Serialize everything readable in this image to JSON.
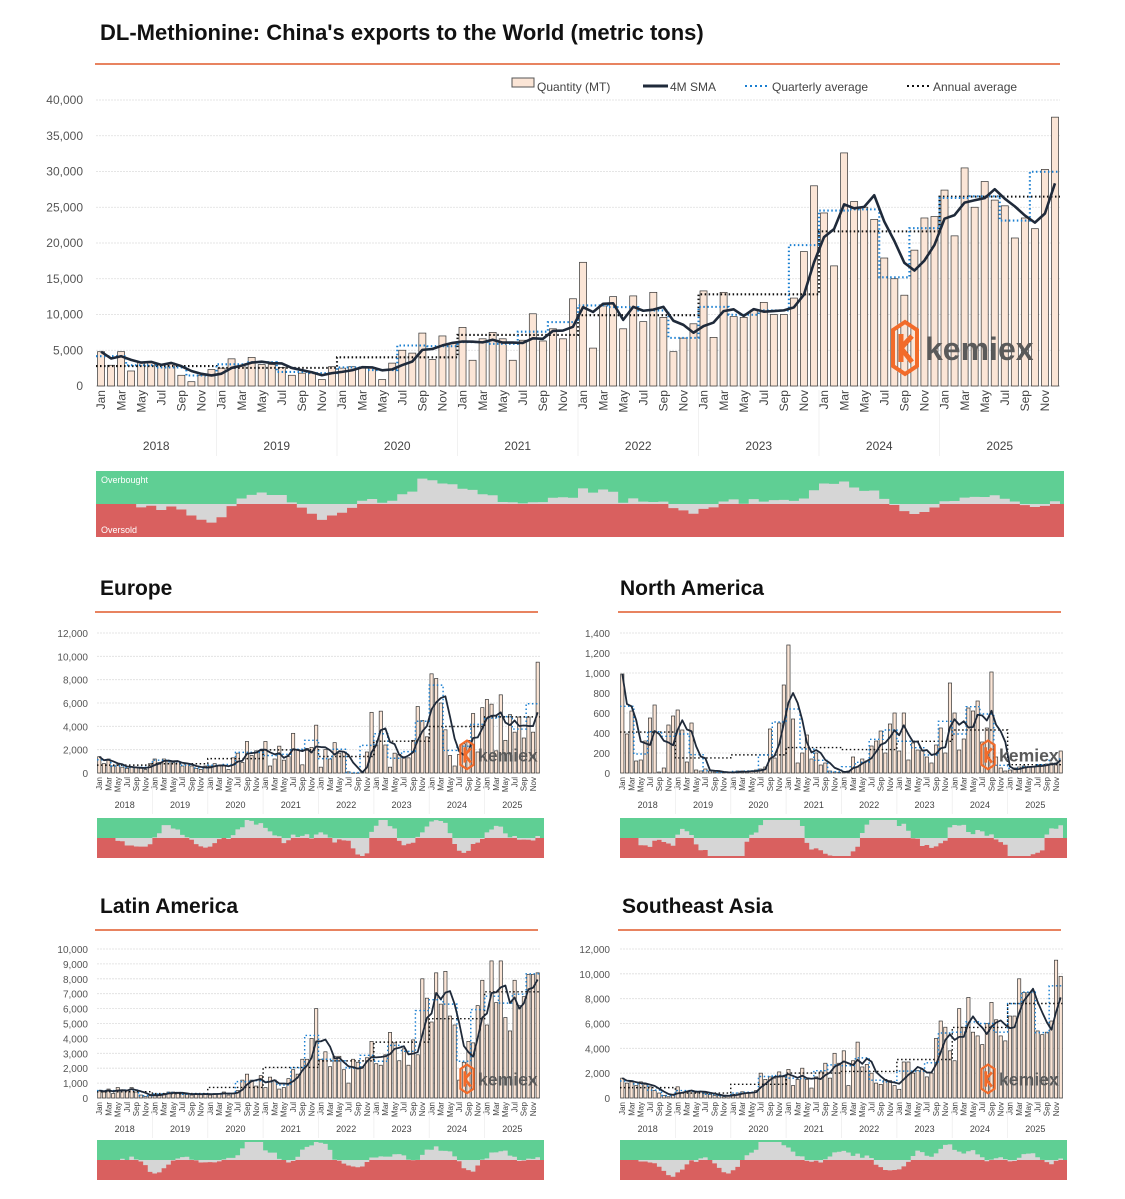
{
  "colors": {
    "bar_fill": "#fbe5d6",
    "bar_stroke": "#333333",
    "sma": "#1f2a3a",
    "quarterly": "#1a7fd1",
    "annual": "#111111",
    "title_rule": "#e05a2b",
    "overbought": "#5fcf94",
    "oversold": "#d9605f",
    "oscillator": "#d6d6d6",
    "logo_orange": "#f26b2a",
    "logo_text": "#5a5a5a"
  },
  "logo_text": "kemiex",
  "legend": {
    "quantity": "Quantity (MT)",
    "sma": "4M SMA",
    "quarterly": "Quarterly average",
    "annual": "Annual average"
  },
  "oscillator_labels": {
    "overbought": "Overbought",
    "oversold": "Oversold"
  },
  "month_labels": [
    "Jan",
    "Mar",
    "May",
    "Jul",
    "Sep",
    "Nov"
  ],
  "years": [
    "2018",
    "2019",
    "2020",
    "2021",
    "2022",
    "2023",
    "2024",
    "2025"
  ],
  "chart_data": [
    {
      "id": "world",
      "type": "bar",
      "title": "DL-Methionine: China's exports to the World (metric tons)",
      "ylim": [
        0,
        40000
      ],
      "ystep": 5000,
      "grid": true,
      "legend_position": "top-right",
      "values": [
        4800,
        2900,
        4800,
        2100,
        3300,
        3300,
        3100,
        3200,
        1500,
        600,
        1500,
        2300,
        2500,
        3800,
        2800,
        4000,
        3000,
        3000,
        2600,
        1500,
        1800,
        1800,
        900,
        2700,
        2500,
        2700,
        2600,
        2600,
        900,
        3200,
        5000,
        4600,
        7400,
        3700,
        7000,
        6000,
        8200,
        3600,
        6600,
        7500,
        6600,
        3600,
        6400,
        10100,
        6300,
        8000,
        6600,
        12200,
        17300,
        5300,
        11200,
        12500,
        8000,
        12600,
        9000,
        13100,
        9600,
        4800,
        6700,
        8700,
        13300,
        6800,
        13100,
        9700,
        9600,
        10600,
        11700,
        10000,
        10000,
        12300,
        18800,
        28000,
        24200,
        16800,
        32600,
        25800,
        25000,
        23300,
        17900,
        15000,
        12700,
        19000,
        23500,
        23700,
        27400,
        21000,
        30500,
        25000,
        28600,
        26000,
        25200,
        20700,
        23500,
        22000,
        30300,
        37600
      ]
    },
    {
      "id": "europe",
      "type": "bar",
      "title": "Europe",
      "ylim": [
        0,
        12000
      ],
      "ystep": 2000,
      "grid": true,
      "values": [
        1400,
        800,
        1200,
        600,
        700,
        500,
        400,
        500,
        500,
        400,
        300,
        800,
        1200,
        900,
        1200,
        1000,
        900,
        1000,
        600,
        800,
        600,
        400,
        300,
        600,
        600,
        800,
        600,
        600,
        300,
        1300,
        1700,
        900,
        2700,
        1500,
        1900,
        1900,
        2700,
        600,
        1200,
        2300,
        1100,
        1400,
        3400,
        2000,
        700,
        2100,
        2200,
        4100,
        500,
        2000,
        1200,
        2600,
        1700,
        1800,
        100,
        0,
        0,
        100,
        1800,
        5200,
        2400,
        5300,
        2400,
        500,
        1700,
        1600,
        1400,
        1300,
        2800,
        5700,
        4500,
        3100,
        8500,
        8100,
        6000,
        3700,
        1500,
        600,
        1600,
        2500,
        2800,
        5100,
        1800,
        5600,
        6300,
        5900,
        1900,
        6700,
        2800,
        5000,
        3500,
        4800,
        3000,
        4800,
        3500,
        9500
      ]
    },
    {
      "id": "north-america",
      "type": "bar",
      "title": "North America",
      "ylim": [
        0,
        1400
      ],
      "ystep": 200,
      "grid": true,
      "values": [
        990,
        390,
        620,
        120,
        130,
        320,
        550,
        680,
        10,
        50,
        480,
        570,
        630,
        430,
        110,
        500,
        30,
        20,
        40,
        20,
        10,
        10,
        5,
        5,
        5,
        20,
        20,
        10,
        20,
        30,
        40,
        60,
        440,
        150,
        500,
        880,
        1280,
        540,
        100,
        200,
        380,
        140,
        200,
        80,
        100,
        20,
        10,
        5,
        10,
        20,
        160,
        60,
        140,
        120,
        270,
        320,
        420,
        200,
        490,
        600,
        220,
        600,
        130,
        300,
        230,
        230,
        160,
        100,
        280,
        450,
        200,
        900,
        600,
        230,
        340,
        650,
        620,
        720,
        310,
        450,
        1010,
        160,
        50,
        20,
        30,
        50,
        60,
        70,
        60,
        60,
        80,
        80,
        90,
        100,
        100,
        220
      ]
    },
    {
      "id": "latin-america",
      "type": "bar",
      "title": "Latin America",
      "ylim": [
        0,
        10000
      ],
      "ystep": 1000,
      "grid": true,
      "values": [
        500,
        400,
        600,
        300,
        700,
        500,
        500,
        700,
        400,
        200,
        100,
        150,
        250,
        250,
        300,
        400,
        400,
        300,
        300,
        250,
        200,
        300,
        250,
        300,
        200,
        300,
        300,
        400,
        200,
        300,
        500,
        1200,
        1600,
        1200,
        800,
        1500,
        700,
        1400,
        1200,
        600,
        700,
        1300,
        1900,
        1600,
        2600,
        2600,
        4000,
        6000,
        2600,
        3100,
        2100,
        2800,
        2800,
        1900,
        1000,
        2600,
        2400,
        2100,
        2700,
        3800,
        2300,
        2200,
        2900,
        4400,
        3700,
        2500,
        3300,
        2200,
        3900,
        2900,
        8000,
        6700,
        5100,
        8400,
        6300,
        8500,
        5500,
        4900,
        1200,
        2400,
        3800,
        3700,
        6200,
        7900,
        4900,
        9200,
        6400,
        9200,
        5400,
        4500,
        7900,
        6200,
        6800,
        8300,
        8300,
        8400
      ]
    },
    {
      "id": "southeast-asia",
      "type": "bar",
      "title": "Southeast Asia",
      "ylim": [
        0,
        12000
      ],
      "ystep": 2000,
      "grid": true,
      "values": [
        1600,
        1200,
        1300,
        1000,
        1300,
        1100,
        900,
        600,
        400,
        200,
        100,
        300,
        900,
        400,
        500,
        600,
        500,
        500,
        400,
        300,
        200,
        200,
        100,
        200,
        300,
        400,
        500,
        400,
        400,
        600,
        2000,
        1500,
        1700,
        1600,
        2100,
        1700,
        2300,
        1000,
        1500,
        2400,
        1500,
        800,
        1700,
        2100,
        2800,
        1600,
        3600,
        2800,
        3800,
        1000,
        3000,
        4500,
        2500,
        2700,
        2000,
        1200,
        1100,
        1500,
        1400,
        1000,
        700,
        2900,
        2900,
        2000,
        2200,
        2300,
        1700,
        2000,
        4800,
        6200,
        5700,
        3800,
        3000,
        7200,
        5700,
        8100,
        5300,
        5000,
        4300,
        6000,
        7700,
        6300,
        5000,
        4600,
        6600,
        6600,
        9600,
        8500,
        8500,
        8600,
        5400,
        5100,
        5300,
        6200,
        11100,
        9800
      ]
    }
  ]
}
